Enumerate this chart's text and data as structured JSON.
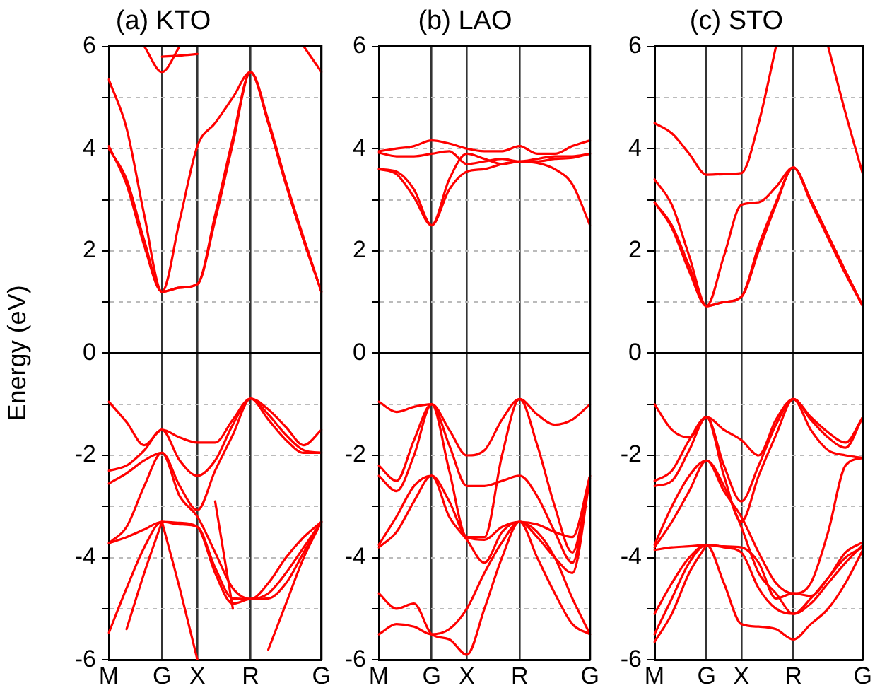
{
  "chart_data": [
    {
      "type": "line",
      "title": "(a) KTO",
      "ylabel": "Energy (eV)",
      "categories": [
        "M",
        null,
        null,
        "G",
        null,
        "X",
        null,
        null,
        "R",
        null,
        null,
        null,
        "G"
      ],
      "ylim": [
        -6,
        6
      ],
      "yticks": [
        -6,
        {
          "value": -5,
          "label": null
        },
        -4,
        {
          "value": -3,
          "label": null
        },
        -2,
        {
          "value": -1,
          "label": null
        },
        0,
        {
          "value": 1,
          "label": null
        },
        2,
        {
          "value": 3,
          "label": null
        },
        4,
        {
          "value": 5,
          "label": null
        },
        6
      ],
      "grid": true,
      "marker": "none",
      "line_style": "solid",
      "ref_lines": [
        {
          "axis": "y",
          "value": 0
        }
      ],
      "series": [
        {
          "color": "#ff0000",
          "values": [
            4.0,
            3.4,
            2.2,
            1.2,
            1.28,
            1.35,
            2.7,
            4.2,
            5.5,
            4.5,
            3.3,
            2.2,
            1.2
          ]
        },
        {
          "color": "#ff0000",
          "values": [
            4.05,
            3.3,
            2.1,
            1.2,
            2.6,
            4.05,
            4.5,
            5.0,
            5.5,
            4.55,
            3.35,
            2.25,
            1.2
          ]
        },
        {
          "color": "#ff0000",
          "values": [
            5.35,
            4.4,
            2.7,
            1.2,
            1.28,
            1.35,
            2.6,
            4.1,
            5.5,
            4.5,
            3.3,
            2.2,
            1.2
          ]
        },
        {
          "color": "#ff0000",
          "values": [
            null,
            null,
            6,
            5.5,
            6,
            null,
            null,
            null,
            null,
            null,
            null,
            null,
            null
          ]
        },
        {
          "color": "#ff0000",
          "values": [
            null,
            null,
            null,
            5.8,
            5.82,
            5.85,
            null,
            null,
            null,
            null,
            null,
            null,
            null
          ]
        },
        {
          "color": "#ff0000",
          "values": [
            null,
            null,
            null,
            null,
            null,
            null,
            null,
            null,
            null,
            null,
            null,
            6,
            5.5
          ]
        },
        {
          "color": "#ff0000",
          "values": [
            -0.95,
            -1.35,
            -1.8,
            -1.5,
            -1.65,
            -1.75,
            -1.75,
            -1.3,
            -0.89,
            -1.1,
            -1.45,
            -1.8,
            -1.5
          ]
        },
        {
          "color": "#ff0000",
          "values": [
            -2.3,
            -2.2,
            -1.9,
            -1.5,
            -2.1,
            -2.4,
            -2.1,
            -1.4,
            -0.89,
            -1.2,
            -1.6,
            -1.9,
            -1.95
          ]
        },
        {
          "color": "#ff0000",
          "values": [
            -2.55,
            -2.35,
            -2.1,
            -1.95,
            -2.6,
            -3.07,
            -2.3,
            -1.6,
            -0.89,
            -1.3,
            -1.7,
            -1.95,
            -1.95
          ]
        },
        {
          "color": "#ff0000",
          "values": [
            -3.72,
            -3.4,
            -2.6,
            -1.95,
            -2.8,
            -3.2,
            -3.9,
            -4.6,
            -4.81,
            -4.5,
            -4.0,
            -3.6,
            -3.3
          ]
        },
        {
          "color": "#ff0000",
          "values": [
            -3.72,
            -3.6,
            -3.45,
            -3.3,
            -3.35,
            -3.4,
            -4.2,
            -4.8,
            -4.81,
            -4.7,
            -4.3,
            -3.8,
            -3.3
          ]
        },
        {
          "color": "#ff0000",
          "values": [
            -5.47,
            -4.6,
            -3.8,
            -3.3,
            -3.32,
            -3.4,
            -4.3,
            -4.9,
            -4.81,
            -4.8,
            -4.5,
            -3.9,
            -3.3
          ]
        },
        {
          "color": "#ff0000",
          "values": [
            null,
            null,
            null,
            -3.3,
            -4.6,
            -6,
            null,
            null,
            null,
            null,
            null,
            null,
            null
          ]
        },
        {
          "color": "#ff0000",
          "values": [
            null,
            -5.4,
            -4.3,
            -3.3,
            null,
            null,
            null,
            null,
            null,
            null,
            null,
            null,
            null
          ]
        },
        {
          "color": "#ff0000",
          "values": [
            null,
            null,
            null,
            null,
            null,
            null,
            -2.9,
            -5.0,
            null,
            null,
            null,
            null,
            null
          ]
        },
        {
          "color": "#ff0000",
          "values": [
            null,
            null,
            null,
            null,
            null,
            null,
            null,
            null,
            null,
            -5.8,
            -4.9,
            -4.0,
            -3.3
          ]
        }
      ]
    },
    {
      "type": "line",
      "title": "(b) LAO",
      "categories": [
        "M",
        null,
        null,
        "G",
        null,
        "X",
        null,
        null,
        "R",
        null,
        null,
        null,
        "G"
      ],
      "ylim": [
        -6,
        6
      ],
      "yticks": [
        -6,
        {
          "value": -5,
          "label": null
        },
        -4,
        {
          "value": -3,
          "label": null
        },
        -2,
        {
          "value": -1,
          "label": null
        },
        0,
        {
          "value": 1,
          "label": null
        },
        2,
        {
          "value": 3,
          "label": null
        },
        4,
        {
          "value": 5,
          "label": null
        },
        6
      ],
      "grid": true,
      "marker": "none",
      "line_style": "solid",
      "ref_lines": [
        {
          "axis": "y",
          "value": 0
        }
      ],
      "series": [
        {
          "color": "#ff0000",
          "values": [
            3.95,
            4.0,
            4.05,
            4.16,
            4.1,
            4.0,
            3.95,
            3.95,
            4.05,
            3.9,
            3.9,
            4.05,
            4.16
          ]
        },
        {
          "color": "#ff0000",
          "values": [
            3.92,
            3.85,
            3.85,
            3.9,
            3.95,
            3.7,
            3.75,
            3.8,
            3.75,
            3.8,
            3.85,
            3.85,
            3.9
          ]
        },
        {
          "color": "#ff0000",
          "values": [
            3.6,
            3.55,
            3.2,
            2.5,
            3.2,
            3.55,
            3.6,
            3.7,
            3.75,
            3.72,
            3.6,
            3.3,
            2.5
          ]
        },
        {
          "color": "#ff0000",
          "values": [
            3.6,
            3.5,
            3.05,
            2.5,
            3.4,
            3.9,
            3.8,
            3.7,
            3.75,
            3.75,
            3.8,
            3.82,
            3.9
          ]
        },
        {
          "color": "#ff0000",
          "values": [
            -0.95,
            -1.15,
            -1.05,
            -1.0,
            -1.5,
            -2.0,
            -1.9,
            -1.3,
            -0.9,
            -1.2,
            -1.4,
            -1.3,
            -1.0
          ]
        },
        {
          "color": "#ff0000",
          "values": [
            -2.2,
            -2.5,
            -1.7,
            -1.0,
            -2.3,
            -3.6,
            -3.6,
            -2.0,
            -0.9,
            -1.8,
            -3.0,
            -3.9,
            -2.4
          ]
        },
        {
          "color": "#ff0000",
          "values": [
            -2.4,
            -2.7,
            -2.0,
            -1.0,
            -1.8,
            -2.6,
            -2.6,
            -2.5,
            -2.4,
            -2.8,
            -3.5,
            -4.1,
            -2.4
          ]
        },
        {
          "color": "#ff0000",
          "values": [
            -3.75,
            -3.2,
            -2.6,
            -2.4,
            -2.9,
            -3.6,
            -3.65,
            -3.4,
            -3.3,
            -3.35,
            -3.5,
            -3.6,
            -2.4
          ]
        },
        {
          "color": "#ff0000",
          "values": [
            -3.8,
            -3.5,
            -2.9,
            -2.4,
            -3.2,
            -3.65,
            -4.1,
            -3.5,
            -3.3,
            -3.6,
            -4.0,
            -4.3,
            -2.45
          ]
        },
        {
          "color": "#ff0000",
          "values": [
            -4.7,
            -5.0,
            -4.9,
            -5.5,
            -5.6,
            -5.9,
            -5.0,
            -4.0,
            -3.3,
            -4.0,
            -4.7,
            -5.3,
            -5.5
          ]
        },
        {
          "color": "#ff0000",
          "values": [
            -5.5,
            -5.3,
            -5.35,
            -5.5,
            -5.4,
            -5.0,
            -4.3,
            -3.7,
            -3.3,
            -3.5,
            -4.0,
            -4.8,
            -5.5
          ]
        }
      ]
    },
    {
      "type": "line",
      "title": "(c) STO",
      "categories": [
        "M",
        null,
        null,
        "G",
        null,
        "X",
        null,
        null,
        "R",
        null,
        null,
        null,
        "G"
      ],
      "ylim": [
        -6,
        6
      ],
      "yticks": [
        -6,
        {
          "value": -5,
          "label": null
        },
        -4,
        {
          "value": -3,
          "label": null
        },
        -2,
        {
          "value": -1,
          "label": null
        },
        0,
        {
          "value": 1,
          "label": null
        },
        2,
        {
          "value": 3,
          "label": null
        },
        4,
        {
          "value": 5,
          "label": null
        },
        6
      ],
      "grid": true,
      "marker": "none",
      "line_style": "solid",
      "ref_lines": [
        {
          "axis": "y",
          "value": 0
        }
      ],
      "series": [
        {
          "color": "#ff0000",
          "values": [
            4.5,
            4.3,
            3.9,
            3.49,
            3.5,
            3.52,
            4.5,
            6.0,
            null,
            null,
            null,
            null,
            null
          ]
        },
        {
          "color": "#ff0000",
          "values": [
            null,
            null,
            null,
            null,
            null,
            null,
            null,
            null,
            null,
            null,
            6.0,
            4.7,
            3.5
          ]
        },
        {
          "color": "#ff0000",
          "values": [
            3.4,
            2.9,
            1.9,
            0.92,
            1.0,
            1.1,
            2.0,
            2.9,
            3.63,
            3.0,
            2.3,
            1.6,
            0.92
          ]
        },
        {
          "color": "#ff0000",
          "values": [
            2.95,
            2.5,
            1.7,
            0.92,
            1.9,
            2.9,
            2.95,
            3.25,
            3.63,
            2.95,
            2.25,
            1.55,
            0.92
          ]
        },
        {
          "color": "#ff0000",
          "values": [
            2.95,
            2.45,
            1.6,
            0.92,
            1.0,
            1.1,
            2.1,
            2.95,
            3.63,
            3.0,
            2.3,
            1.6,
            0.92
          ]
        },
        {
          "color": "#ff0000",
          "values": [
            -1.0,
            -1.5,
            -1.65,
            -1.25,
            -1.5,
            -1.7,
            -2.0,
            -1.3,
            -0.9,
            -1.3,
            -1.65,
            -1.85,
            -1.25
          ]
        },
        {
          "color": "#ff0000",
          "values": [
            -2.5,
            -2.3,
            -1.7,
            -1.25,
            -2.2,
            -2.9,
            -2.2,
            -1.4,
            -0.9,
            -1.25,
            -1.55,
            -1.75,
            -1.25
          ]
        },
        {
          "color": "#ff0000",
          "values": [
            -2.6,
            -2.5,
            -1.9,
            -1.25,
            -2.4,
            -3.3,
            -2.4,
            -1.6,
            -0.9,
            -1.5,
            -1.9,
            -2.0,
            -2.05
          ]
        },
        {
          "color": "#ff0000",
          "values": [
            -3.75,
            -3.0,
            -2.4,
            -2.1,
            -2.7,
            -3.2,
            -3.9,
            -4.5,
            -4.7,
            -4.5,
            -3.5,
            -2.2,
            -2.05
          ]
        },
        {
          "color": "#ff0000",
          "values": [
            -3.8,
            -3.3,
            -2.7,
            -2.1,
            -2.6,
            -3.4,
            -4.3,
            -4.7,
            -5.1,
            -4.8,
            -4.4,
            -4.0,
            -3.8
          ]
        },
        {
          "color": "#ff0000",
          "values": [
            -3.85,
            -3.8,
            -3.78,
            -3.75,
            -3.78,
            -3.8,
            -4.1,
            -4.8,
            -4.7,
            -4.75,
            -4.4,
            -3.9,
            -3.7
          ]
        },
        {
          "color": "#ff0000",
          "values": [
            -5.1,
            -4.5,
            -4.0,
            -3.75,
            -3.8,
            -3.9,
            -4.6,
            -5.0,
            -5.1,
            -4.9,
            -4.5,
            -4.1,
            -3.75
          ]
        },
        {
          "color": "#ff0000",
          "values": [
            -5.5,
            -4.8,
            -4.1,
            -3.75,
            -4.5,
            -5.3,
            -5.35,
            -5.4,
            -5.6,
            -5.3,
            -5.0,
            -4.5,
            -3.85
          ]
        },
        {
          "color": "#ff0000",
          "values": [
            -5.65,
            -5.1,
            -4.3,
            -3.75,
            null,
            null,
            null,
            null,
            null,
            null,
            null,
            null,
            null
          ]
        }
      ]
    }
  ]
}
